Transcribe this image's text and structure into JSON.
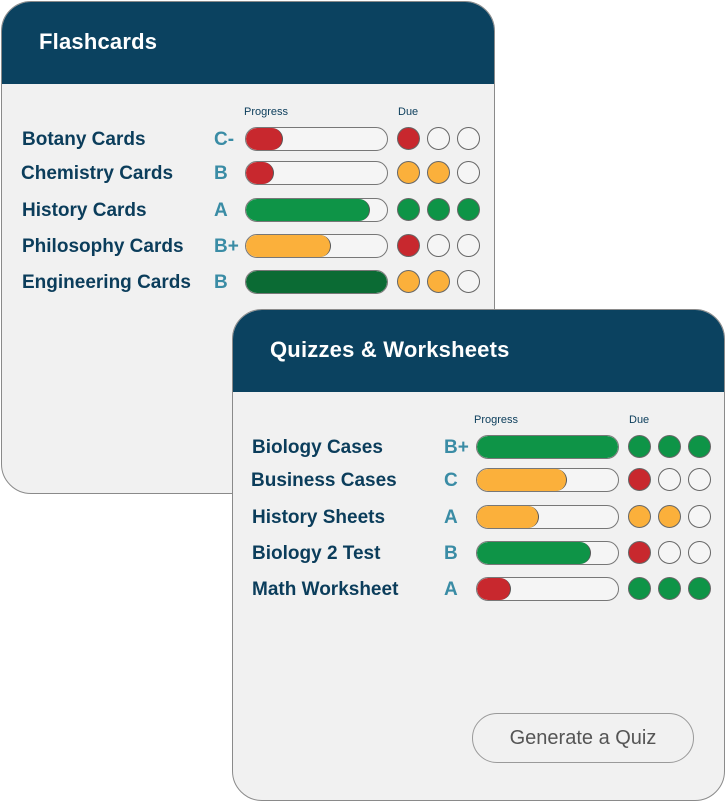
{
  "flashcards": {
    "title": "Flashcards",
    "progress_label": "Progress",
    "due_label": "Due",
    "rows": [
      {
        "name": "Botany Cards",
        "grade": "C-",
        "progress": 0.26,
        "progress_color": "#c8282e",
        "due": [
          "red",
          "empty",
          "empty"
        ]
      },
      {
        "name": "Chemistry Cards",
        "grade": "B",
        "progress": 0.2,
        "progress_color": "#c8282e",
        "due": [
          "yellow",
          "yellow",
          "empty"
        ]
      },
      {
        "name": "History Cards",
        "grade": "A",
        "progress": 0.88,
        "progress_color": "#0e9447",
        "due": [
          "green",
          "green",
          "green"
        ]
      },
      {
        "name": "Philosophy Cards",
        "grade": "B+",
        "progress": 0.6,
        "progress_color": "#fbb03b",
        "due": [
          "red",
          "empty",
          "empty"
        ]
      },
      {
        "name": "Engineering Cards",
        "grade": "B",
        "progress": 1.0,
        "progress_color": "#0b6b34",
        "due": [
          "yellow",
          "yellow",
          "empty"
        ]
      }
    ]
  },
  "quizzes": {
    "title": "Quizzes & Worksheets",
    "progress_label": "Progress",
    "due_label": "Due",
    "rows": [
      {
        "name": "Biology Cases",
        "grade": "B+",
        "progress": 1.0,
        "progress_color": "#0e9447",
        "due": [
          "green",
          "green",
          "green"
        ]
      },
      {
        "name": "Business Cases",
        "grade": "C",
        "progress": 0.64,
        "progress_color": "#fbb03b",
        "due": [
          "red",
          "empty",
          "empty"
        ]
      },
      {
        "name": "History Sheets",
        "grade": "A",
        "progress": 0.44,
        "progress_color": "#fbb03b",
        "due": [
          "yellow",
          "yellow",
          "empty"
        ]
      },
      {
        "name": "Biology 2 Test",
        "grade": "B",
        "progress": 0.81,
        "progress_color": "#0e9447",
        "due": [
          "red",
          "empty",
          "empty"
        ]
      },
      {
        "name": "Math Worksheet",
        "grade": "A",
        "progress": 0.24,
        "progress_color": "#c8282e",
        "due": [
          "green",
          "green",
          "green"
        ]
      }
    ],
    "generate_label": "Generate a Quiz"
  },
  "due_colors": {
    "red": "#c8282e",
    "yellow": "#fbb03b",
    "green": "#0e9447",
    "empty": "#f5f5f5"
  }
}
